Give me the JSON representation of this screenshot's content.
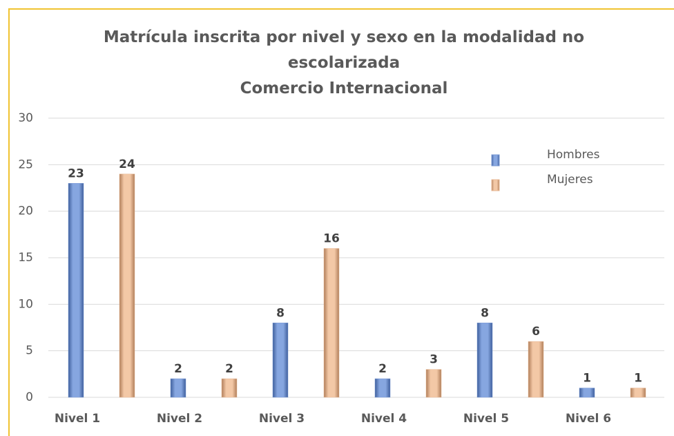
{
  "chart_data": {
    "type": "bar",
    "title": "Matrícula inscrita por nivel y sexo en la modalidad no escolarizada",
    "subtitle": "Comercio Internacional",
    "categories": [
      "Nivel 1",
      "Nivel 2",
      "Nivel 3",
      "Nivel 4",
      "Nivel 5",
      "Nivel 6"
    ],
    "series": [
      {
        "name": "Hombres",
        "color": "#7b9bd6",
        "values": [
          23,
          2,
          8,
          2,
          8,
          1
        ]
      },
      {
        "name": "Mujeres",
        "color": "#e9b996",
        "values": [
          24,
          2,
          16,
          3,
          6,
          1
        ]
      }
    ],
    "ylim": [
      0,
      30
    ],
    "yticks": [
      0,
      5,
      10,
      15,
      20,
      25,
      30
    ],
    "grid": true,
    "legend": "upper right"
  }
}
